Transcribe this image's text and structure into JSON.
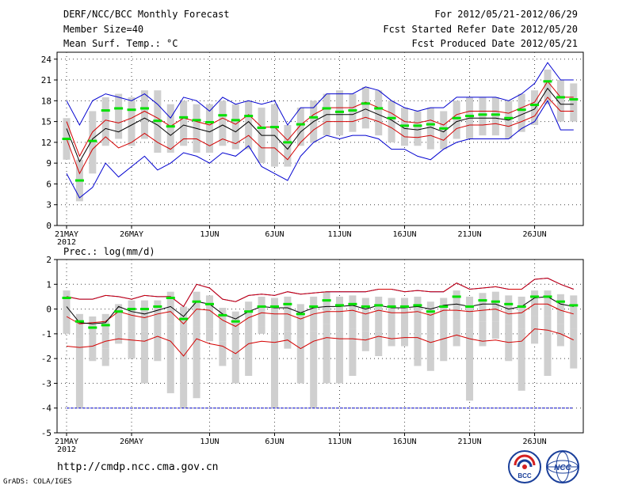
{
  "header": {
    "title": "DERF/NCC/BCC Monthly Forecast",
    "member_size": "Member Size=40",
    "variable": "Mean Surf. Temp.: °C",
    "period": "For 2012/05/21-2012/06/29",
    "started": "Fcst Started Refer Date 2012/05/20",
    "produced": "Fcst Produced Date 2012/05/21"
  },
  "footer": {
    "url": "http://cmdp.ncc.cma.gov.cn",
    "credit": "GrADS: COLA/IGES",
    "logo_left_text": "BCC",
    "logo_right_text": "NCC"
  },
  "colors": {
    "median": "#00e000",
    "box": "#cfcfcf",
    "mean": "#000000",
    "sd": "#d40000",
    "envelope": "#0000d0"
  },
  "chart_data": [
    {
      "type": "box",
      "title": "Mean Surf. Temp.: °C",
      "x_label_year": "2012",
      "x": [
        1,
        2,
        3,
        4,
        5,
        6,
        7,
        8,
        9,
        10,
        11,
        12,
        13,
        14,
        15,
        16,
        17,
        18,
        19,
        20,
        21,
        22,
        23,
        24,
        25,
        26,
        27,
        28,
        29,
        30,
        31,
        32,
        33,
        34,
        35,
        36,
        37,
        38,
        39,
        40
      ],
      "xticks": [
        {
          "day": 1,
          "label": "21MAY"
        },
        {
          "day": 6,
          "label": "26MAY"
        },
        {
          "day": 12,
          "label": "1JUN"
        },
        {
          "day": 17,
          "label": "6JUN"
        },
        {
          "day": 22,
          "label": "11JUN"
        },
        {
          "day": 27,
          "label": "16JUN"
        },
        {
          "day": 32,
          "label": "21JUN"
        },
        {
          "day": 37,
          "label": "26JUN"
        }
      ],
      "ylim": [
        0,
        25
      ],
      "yticks": [
        0,
        3,
        6,
        9,
        12,
        15,
        18,
        21,
        24
      ],
      "series": [
        {
          "name": "median",
          "values": [
            12.5,
            6.5,
            12.2,
            16.6,
            16.9,
            16.7,
            16.9,
            15.1,
            14.3,
            15.6,
            15.2,
            14.9,
            15.9,
            15.2,
            15.8,
            14.1,
            14.2,
            12.0,
            14.6,
            15.6,
            16.9,
            16.4,
            16.6,
            17.6,
            16.9,
            15.5,
            14.4,
            14.4,
            14.6,
            14.0,
            15.5,
            15.8,
            16.0,
            16.0,
            15.5,
            16.7,
            17.4,
            20.8,
            18.5,
            18.2
          ]
        },
        {
          "name": "box_low",
          "values": [
            9.5,
            3.5,
            7.5,
            11.5,
            12.5,
            11.5,
            12.5,
            10.5,
            10.5,
            11.5,
            10.5,
            10.5,
            11.5,
            11.0,
            11.0,
            9.0,
            8.5,
            8.5,
            11.5,
            12.0,
            13.0,
            13.0,
            13.5,
            14.0,
            13.0,
            12.0,
            11.5,
            11.5,
            11.0,
            11.0,
            12.5,
            12.5,
            13.0,
            13.0,
            12.5,
            13.5,
            14.5,
            17.5,
            15.0,
            15.0
          ]
        },
        {
          "name": "box_high",
          "values": [
            15.5,
            9.5,
            16.5,
            18.5,
            19.0,
            18.5,
            19.5,
            19.5,
            17.5,
            18.0,
            17.5,
            17.5,
            18.0,
            17.5,
            18.0,
            17.0,
            17.5,
            14.5,
            17.0,
            18.0,
            19.0,
            19.5,
            19.0,
            20.0,
            19.5,
            18.0,
            17.0,
            16.5,
            17.0,
            16.5,
            18.0,
            18.5,
            18.5,
            18.5,
            18.0,
            19.0,
            19.5,
            22.5,
            21.0,
            20.5
          ]
        },
        {
          "name": "mean",
          "values": [
            14.0,
            9.2,
            12.5,
            14.0,
            13.5,
            14.5,
            15.5,
            14.5,
            13.0,
            14.5,
            14.0,
            13.5,
            14.5,
            13.5,
            15.0,
            13.0,
            13.0,
            11.0,
            13.5,
            15.0,
            16.0,
            16.0,
            16.0,
            16.8,
            16.0,
            15.2,
            14.0,
            13.8,
            14.2,
            13.5,
            15.0,
            15.5,
            15.5,
            15.5,
            15.2,
            16.0,
            16.8,
            19.8,
            17.5,
            17.5
          ]
        },
        {
          "name": "mean_plus_sd",
          "values": [
            15.0,
            10.0,
            13.5,
            15.2,
            14.8,
            15.5,
            16.5,
            15.5,
            14.3,
            15.5,
            15.0,
            14.5,
            15.5,
            14.6,
            16.0,
            14.2,
            14.2,
            12.3,
            14.5,
            16.0,
            17.0,
            17.0,
            17.0,
            17.8,
            17.0,
            16.2,
            15.0,
            14.8,
            15.2,
            14.5,
            16.0,
            16.5,
            16.5,
            16.5,
            16.2,
            17.0,
            17.8,
            20.8,
            18.5,
            18.5
          ]
        },
        {
          "name": "mean_minus_sd",
          "values": [
            12.5,
            7.5,
            11.0,
            12.8,
            11.2,
            12.0,
            13.3,
            12.0,
            11.0,
            12.5,
            12.5,
            11.5,
            12.5,
            11.8,
            13.0,
            11.2,
            11.2,
            9.5,
            12.0,
            13.8,
            15.0,
            15.0,
            15.0,
            15.6,
            15.0,
            14.1,
            12.8,
            12.7,
            13.0,
            12.3,
            14.0,
            14.5,
            14.5,
            14.7,
            14.3,
            15.0,
            15.8,
            18.5,
            16.5,
            16.5
          ]
        },
        {
          "name": "max",
          "values": [
            18.0,
            14.5,
            18.0,
            19.0,
            18.5,
            18.0,
            19.0,
            17.5,
            15.5,
            18.5,
            18.0,
            16.5,
            18.5,
            17.5,
            18.0,
            17.5,
            18.0,
            14.5,
            17.0,
            17.0,
            19.0,
            19.0,
            19.0,
            20.0,
            19.5,
            18.0,
            17.0,
            16.5,
            17.0,
            17.0,
            18.5,
            18.5,
            18.5,
            18.5,
            18.0,
            19.0,
            20.5,
            23.5,
            21.0,
            21.0
          ]
        },
        {
          "name": "min",
          "values": [
            7.5,
            4.0,
            5.5,
            9.0,
            7.0,
            8.5,
            10.0,
            8.0,
            9.0,
            10.5,
            10.0,
            9.0,
            10.5,
            10.0,
            11.5,
            8.5,
            7.5,
            6.5,
            10.0,
            12.0,
            13.0,
            12.5,
            13.0,
            13.0,
            12.5,
            11.0,
            11.0,
            10.0,
            9.5,
            11.0,
            12.0,
            12.5,
            12.5,
            12.5,
            12.5,
            14.0,
            15.0,
            18.0,
            13.8,
            13.8
          ]
        }
      ]
    },
    {
      "type": "box",
      "title": "Prec.: log(mm/d)",
      "x_label_year": "2012",
      "x": [
        1,
        2,
        3,
        4,
        5,
        6,
        7,
        8,
        9,
        10,
        11,
        12,
        13,
        14,
        15,
        16,
        17,
        18,
        19,
        20,
        21,
        22,
        23,
        24,
        25,
        26,
        27,
        28,
        29,
        30,
        31,
        32,
        33,
        34,
        35,
        36,
        37,
        38,
        39,
        40
      ],
      "xticks": [
        {
          "day": 1,
          "label": "21MAY"
        },
        {
          "day": 6,
          "label": "26MAY"
        },
        {
          "day": 12,
          "label": "1JUN"
        },
        {
          "day": 17,
          "label": "6JUN"
        },
        {
          "day": 22,
          "label": "11JUN"
        },
        {
          "day": 27,
          "label": "16JUN"
        },
        {
          "day": 32,
          "label": "21JUN"
        },
        {
          "day": 37,
          "label": "26JUN"
        }
      ],
      "ylim": [
        -5,
        2
      ],
      "yticks": [
        -5,
        -4,
        -3,
        -2,
        -1,
        0,
        1,
        2
      ],
      "series": [
        {
          "name": "median",
          "values": [
            0.45,
            -0.5,
            -0.75,
            -0.65,
            -0.1,
            0.0,
            0.0,
            0.1,
            0.45,
            -0.4,
            0.3,
            0.2,
            -0.25,
            -0.5,
            -0.1,
            0.1,
            0.1,
            0.2,
            -0.2,
            0.1,
            0.35,
            0.15,
            0.2,
            0.1,
            0.15,
            0.1,
            0.1,
            0.15,
            -0.1,
            0.1,
            0.5,
            0.1,
            0.35,
            0.3,
            0.2,
            0.1,
            0.5,
            0.5,
            0.3,
            0.15
          ]
        },
        {
          "name": "box_low",
          "values": [
            -0.3,
            -1.2,
            -1.5,
            -1.6,
            -1.0,
            -0.9,
            -0.9,
            -1.0,
            -0.6,
            -1.0,
            -0.7,
            -0.8,
            -1.3,
            -1.5,
            -1.1,
            -0.7,
            -0.9,
            -0.9,
            -1.2,
            -0.9,
            -0.6,
            -0.9,
            -0.8,
            -0.9,
            -0.9,
            -1.1,
            -1.1,
            -1.0,
            -1.2,
            -1.0,
            -0.4,
            -0.8,
            -0.5,
            -0.5,
            -0.6,
            -0.8,
            -0.3,
            -0.3,
            -0.6,
            -0.8
          ]
        },
        {
          "name": "box_high",
          "values": [
            0.75,
            -0.2,
            -0.3,
            -0.2,
            0.2,
            0.35,
            0.35,
            0.35,
            0.7,
            0.1,
            0.7,
            0.55,
            0.05,
            -0.1,
            0.3,
            0.5,
            0.45,
            0.5,
            0.2,
            0.5,
            0.7,
            0.5,
            0.55,
            0.45,
            0.5,
            0.45,
            0.45,
            0.5,
            0.3,
            0.45,
            0.75,
            0.5,
            0.65,
            0.7,
            0.55,
            0.5,
            0.75,
            0.75,
            0.6,
            0.55
          ]
        },
        {
          "name": "mean",
          "values": [
            0.1,
            -0.55,
            -0.6,
            -0.55,
            0.1,
            -0.1,
            -0.2,
            -0.05,
            0.1,
            -0.3,
            0.3,
            0.2,
            -0.2,
            -0.4,
            -0.1,
            0.1,
            0.05,
            0.05,
            -0.15,
            0.05,
            0.1,
            0.1,
            0.15,
            0.0,
            0.15,
            0.05,
            0.05,
            0.1,
            0.0,
            0.15,
            0.2,
            0.1,
            0.2,
            0.2,
            0.0,
            0.1,
            0.45,
            0.5,
            0.2,
            0.1
          ]
        },
        {
          "name": "mean_plus_sd",
          "values": [
            0.5,
            0.4,
            0.4,
            0.55,
            0.5,
            0.4,
            0.55,
            0.5,
            0.5,
            0.1,
            1.0,
            0.85,
            0.4,
            0.3,
            0.55,
            0.6,
            0.55,
            0.7,
            0.6,
            0.65,
            0.7,
            0.7,
            0.7,
            0.7,
            0.8,
            0.8,
            0.7,
            0.75,
            0.7,
            0.7,
            1.05,
            0.8,
            0.85,
            0.9,
            0.8,
            0.8,
            1.2,
            1.25,
            1.0,
            0.8
          ]
        },
        {
          "name": "mean_minus_sd",
          "values": [
            -1.5,
            -1.55,
            -1.5,
            -1.3,
            -1.2,
            -1.25,
            -1.3,
            -1.1,
            -1.3,
            -1.9,
            -1.2,
            -1.4,
            -1.5,
            -1.8,
            -1.4,
            -1.3,
            -1.35,
            -1.25,
            -1.6,
            -1.3,
            -1.15,
            -1.2,
            -1.2,
            -1.25,
            -1.1,
            -1.2,
            -1.15,
            -1.15,
            -1.35,
            -1.2,
            -1.05,
            -1.2,
            -1.3,
            -1.25,
            -1.35,
            -1.3,
            -0.8,
            -0.85,
            -1.0,
            -1.25
          ]
        },
        {
          "name": "mean_minus_2sd",
          "values": [
            -0.3,
            -0.6,
            -0.55,
            -0.5,
            -0.1,
            -0.25,
            -0.35,
            -0.2,
            -0.1,
            -0.6,
            0.0,
            -0.05,
            -0.45,
            -0.7,
            -0.35,
            -0.15,
            -0.2,
            -0.2,
            -0.4,
            -0.2,
            -0.1,
            -0.1,
            -0.05,
            -0.2,
            -0.05,
            -0.15,
            -0.15,
            -0.1,
            -0.25,
            -0.05,
            -0.05,
            -0.1,
            -0.05,
            0.0,
            -0.2,
            -0.15,
            0.2,
            0.2,
            -0.05,
            -0.2
          ]
        },
        {
          "name": "box_whisker_low",
          "values": [
            -1.0,
            -4.0,
            -2.1,
            -2.3,
            -1.4,
            -2.0,
            -3.0,
            -2.1,
            -3.4,
            -4.0,
            -3.6,
            -1.3,
            -2.3,
            -3.0,
            -2.7,
            -1.0,
            -4.0,
            -1.6,
            -3.0,
            -4.0,
            -3.0,
            -3.0,
            -2.7,
            -1.7,
            -1.9,
            -1.5,
            -1.5,
            -2.3,
            -2.5,
            -2.1,
            -1.5,
            -3.7,
            -1.5,
            -1.2,
            -2.1,
            -3.3,
            -1.4,
            -2.7,
            -1.5,
            -2.4
          ]
        }
      ]
    }
  ]
}
